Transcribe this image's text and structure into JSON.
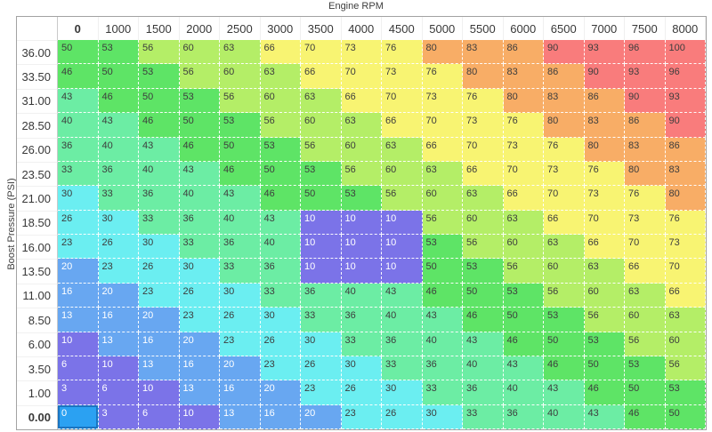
{
  "chart_data": {
    "type": "heatmap",
    "title": "Engine RPM",
    "xlabel": "Engine RPM",
    "ylabel": "Boost Pressure (PSI)",
    "x_categories": [
      "0",
      "1000",
      "1500",
      "2000",
      "2500",
      "3000",
      "3500",
      "4000",
      "4500",
      "5000",
      "5500",
      "6000",
      "6500",
      "7000",
      "7500",
      "8000"
    ],
    "y_categories": [
      "36.00",
      "33.50",
      "31.00",
      "28.50",
      "26.00",
      "23.50",
      "21.00",
      "18.50",
      "16.00",
      "13.50",
      "11.00",
      "8.50",
      "6.00",
      "3.50",
      "1.00",
      "0.00"
    ],
    "matrix": [
      [
        50,
        53,
        56,
        60,
        63,
        66,
        70,
        73,
        76,
        80,
        83,
        86,
        90,
        93,
        96,
        100
      ],
      [
        46,
        50,
        53,
        56,
        60,
        63,
        66,
        70,
        73,
        76,
        80,
        83,
        86,
        90,
        93,
        96
      ],
      [
        43,
        46,
        50,
        53,
        56,
        60,
        63,
        66,
        70,
        73,
        76,
        80,
        83,
        86,
        90,
        93
      ],
      [
        40,
        43,
        46,
        50,
        53,
        56,
        60,
        63,
        66,
        70,
        73,
        76,
        80,
        83,
        86,
        90
      ],
      [
        36,
        40,
        43,
        46,
        50,
        53,
        56,
        60,
        63,
        66,
        70,
        73,
        76,
        80,
        83,
        86
      ],
      [
        33,
        36,
        40,
        43,
        46,
        50,
        53,
        56,
        60,
        63,
        66,
        70,
        73,
        76,
        80,
        83
      ],
      [
        30,
        33,
        36,
        40,
        43,
        46,
        50,
        53,
        56,
        60,
        63,
        66,
        70,
        73,
        76,
        80
      ],
      [
        26,
        30,
        33,
        36,
        40,
        43,
        10,
        10,
        10,
        56,
        60,
        63,
        66,
        70,
        73,
        76
      ],
      [
        23,
        26,
        30,
        33,
        36,
        40,
        10,
        10,
        10,
        53,
        56,
        60,
        63,
        66,
        70,
        73
      ],
      [
        20,
        23,
        26,
        30,
        33,
        36,
        10,
        10,
        10,
        50,
        53,
        56,
        60,
        63,
        66,
        70
      ],
      [
        16,
        20,
        23,
        26,
        30,
        33,
        36,
        40,
        43,
        46,
        50,
        53,
        56,
        60,
        63,
        66
      ],
      [
        13,
        16,
        20,
        23,
        26,
        30,
        33,
        36,
        40,
        43,
        46,
        50,
        53,
        56,
        60,
        63
      ],
      [
        10,
        13,
        16,
        20,
        23,
        26,
        30,
        33,
        36,
        40,
        43,
        46,
        50,
        53,
        56,
        60
      ],
      [
        6,
        10,
        13,
        16,
        20,
        23,
        26,
        30,
        33,
        36,
        40,
        43,
        46,
        50,
        53,
        56
      ],
      [
        3,
        6,
        10,
        13,
        16,
        20,
        23,
        26,
        30,
        33,
        36,
        40,
        43,
        46,
        50,
        53
      ],
      [
        0,
        3,
        6,
        10,
        13,
        16,
        20,
        23,
        26,
        30,
        33,
        36,
        40,
        43,
        46,
        50
      ]
    ]
  },
  "selection": {
    "row": "0.00",
    "column": "0",
    "value": 0
  },
  "colors": {
    "buckets": [
      {
        "max": 12,
        "bg": "#7b73e8",
        "text": "#ffffff"
      },
      {
        "max": 22,
        "bg": "#68a7f1",
        "text": "#ffffff"
      },
      {
        "max": 32,
        "bg": "#6beef1",
        "text": "#3d3d3d"
      },
      {
        "max": 45,
        "bg": "#6ceda4",
        "text": "#3d3d3d"
      },
      {
        "max": 55,
        "bg": "#5ee466",
        "text": "#3d3d3d"
      },
      {
        "max": 65,
        "bg": "#b4ee67",
        "text": "#3d3d3d"
      },
      {
        "max": 78,
        "bg": "#f8f472",
        "text": "#3d3d3d"
      },
      {
        "max": 88,
        "bg": "#f8ad66",
        "text": "#3d3d3d"
      },
      {
        "max": 100,
        "bg": "#f97c7c",
        "text": "#3d3d3d"
      }
    ],
    "selected_bg": "#2ba1f2",
    "selected_border": "#1b74c0",
    "selected_text": "#ffffff",
    "header_text": "#383838",
    "outer_border": "#a3a3a3"
  }
}
